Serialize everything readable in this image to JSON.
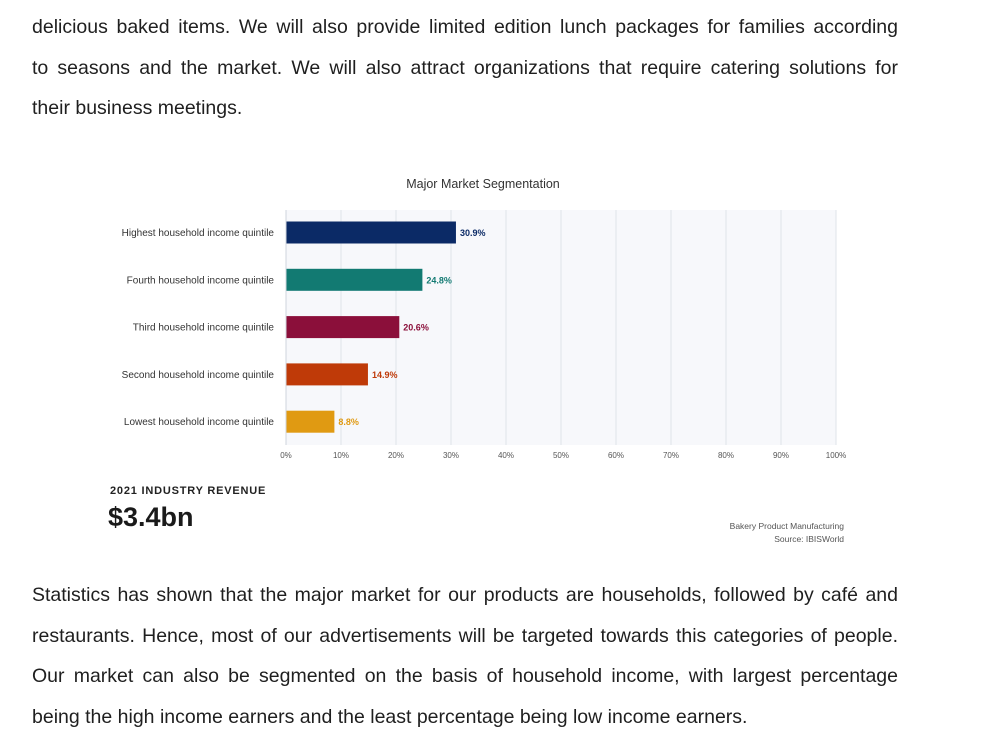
{
  "paragraph_top": {
    "lines": [
      "delicious baked items. We will also provide limited edition lunch packages for families according",
      "to seasons and the market. We will also attract organizations that require catering solutions for",
      "their business meetings."
    ]
  },
  "figure": {
    "revenue_label": "2021 INDUSTRY REVENUE",
    "revenue_value": "$3.4bn",
    "source_line1": "Bakery Product Manufacturing",
    "source_line2": "Source: IBISWorld"
  },
  "chart_data": {
    "type": "bar",
    "orientation": "horizontal",
    "title": "Major Market Segmentation",
    "categories": [
      "Highest household income quintile",
      "Fourth household income quintile",
      "Third household income quintile",
      "Second household income quintile",
      "Lowest household income quintile"
    ],
    "values": [
      30.9,
      24.8,
      20.6,
      14.9,
      8.8
    ],
    "value_labels": [
      "30.9%",
      "24.8%",
      "20.6%",
      "14.9%",
      "8.8%"
    ],
    "bar_colors": [
      "#0b2a66",
      "#127a72",
      "#8b0f3a",
      "#bf3a08",
      "#e09a12"
    ],
    "xlim": [
      0,
      100
    ],
    "x_ticks": [
      "0%",
      "10%",
      "20%",
      "30%",
      "40%",
      "50%",
      "60%",
      "70%",
      "80%",
      "90%",
      "100%"
    ],
    "grid": "vertical",
    "legend": "none"
  },
  "paragraph_bottom": {
    "lines": [
      "Statistics has shown that the major market for our products are households, followed by café and",
      "restaurants. Hence, most of our advertisements will be targeted towards this categories of people.",
      "Our market can also be segmented on the basis of household income, with largest percentage",
      "being the high income earners and the least percentage being low income earners."
    ]
  }
}
